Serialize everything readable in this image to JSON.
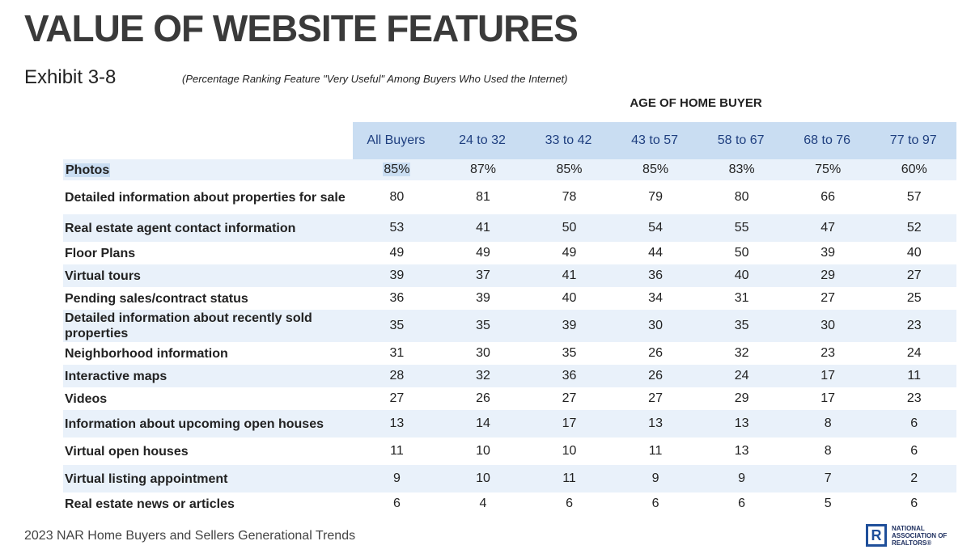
{
  "title": "VALUE OF WEBSITE FEATURES",
  "exhibit": "Exhibit 3-8",
  "subtitle": "(Percentage Ranking Feature \"Very Useful\" Among Buyers Who Used the Internet)",
  "group_header": "AGE OF HOME BUYER",
  "columns": [
    "All Buyers",
    "24 to 32",
    "33 to 42",
    "43 to 57",
    "58 to 67",
    "68 to 76",
    "77 to 97"
  ],
  "rows": [
    {
      "feature": "Photos",
      "values": [
        "85%",
        "87%",
        "85%",
        "85%",
        "83%",
        "75%",
        "60%"
      ]
    },
    {
      "feature": "Detailed information about properties for sale",
      "values": [
        "80",
        "81",
        "78",
        "79",
        "80",
        "66",
        "57"
      ]
    },
    {
      "feature": "Real estate agent contact information",
      "values": [
        "53",
        "41",
        "50",
        "54",
        "55",
        "47",
        "52"
      ]
    },
    {
      "feature": "Floor Plans",
      "values": [
        "49",
        "49",
        "49",
        "44",
        "50",
        "39",
        "40"
      ]
    },
    {
      "feature": "Virtual tours",
      "values": [
        "39",
        "37",
        "41",
        "36",
        "40",
        "29",
        "27"
      ]
    },
    {
      "feature": "Pending sales/contract status",
      "values": [
        "36",
        "39",
        "40",
        "34",
        "31",
        "27",
        "25"
      ]
    },
    {
      "feature": "Detailed information about recently sold properties",
      "values": [
        "35",
        "35",
        "39",
        "30",
        "35",
        "30",
        "23"
      ]
    },
    {
      "feature": "Neighborhood information",
      "values": [
        "31",
        "30",
        "35",
        "26",
        "32",
        "23",
        "24"
      ]
    },
    {
      "feature": "Interactive maps",
      "values": [
        "28",
        "32",
        "36",
        "26",
        "24",
        "17",
        "11"
      ]
    },
    {
      "feature": "Videos",
      "values": [
        "27",
        "26",
        "27",
        "27",
        "29",
        "17",
        "23"
      ]
    },
    {
      "feature": "Information about upcoming open houses",
      "values": [
        "13",
        "14",
        "17",
        "13",
        "13",
        "8",
        "6"
      ]
    },
    {
      "feature": "Virtual open houses",
      "values": [
        "11",
        "10",
        "10",
        "11",
        "13",
        "8",
        "6"
      ]
    },
    {
      "feature": "Virtual listing appointment",
      "values": [
        "9",
        "10",
        "11",
        "9",
        "9",
        "7",
        "2"
      ]
    },
    {
      "feature": "Real estate news or articles",
      "values": [
        "6",
        "4",
        "6",
        "6",
        "6",
        "5",
        "6"
      ]
    }
  ],
  "footer": "2023 NAR Home Buyers and Sellers Generational Trends",
  "logo": {
    "mark": "R",
    "line1": "NATIONAL",
    "line2": "ASSOCIATION OF",
    "line3": "REALTORS®",
    "color": "#1f4f9a"
  },
  "colors": {
    "header_bg": "#c9ddf2",
    "header_text": "#1f3f7f",
    "stripe": "#e9f1fa"
  }
}
